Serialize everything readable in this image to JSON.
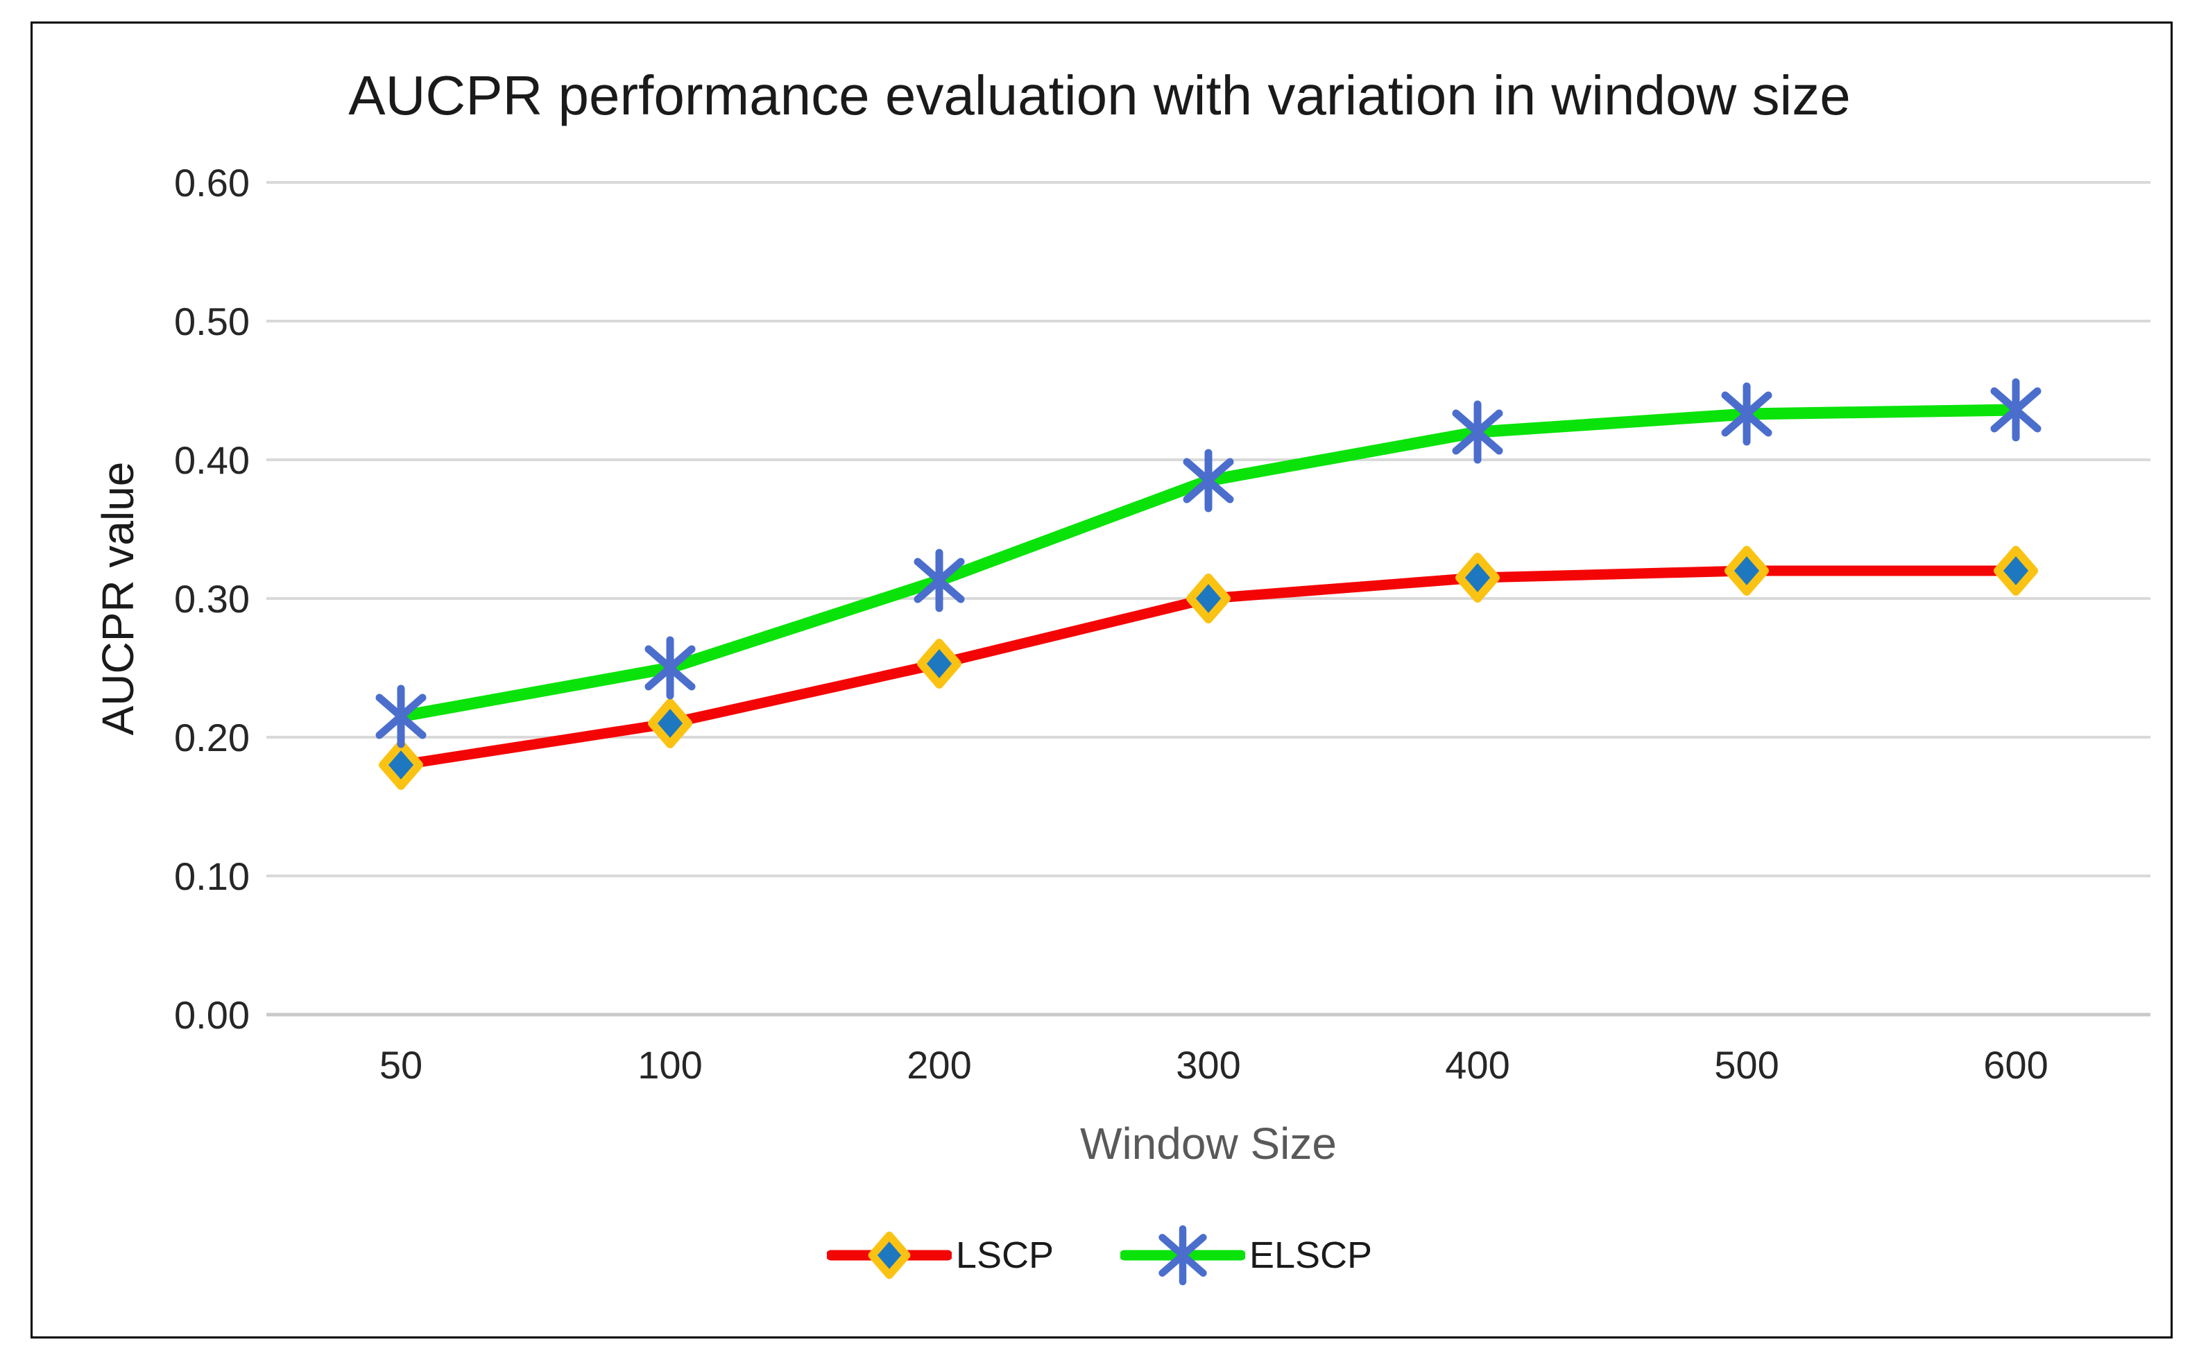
{
  "chart_data": {
    "type": "line",
    "title": "AUCPR performance evaluation with variation in window size",
    "xlabel": "Window Size",
    "ylabel": "AUCPR value",
    "categories": [
      "50",
      "100",
      "200",
      "300",
      "400",
      "500",
      "600"
    ],
    "y_ticks": [
      "0.00",
      "0.10",
      "0.20",
      "0.30",
      "0.40",
      "0.50",
      "0.60"
    ],
    "ylim": [
      0.0,
      0.6
    ],
    "grid": true,
    "legend_position": "bottom-center",
    "series": [
      {
        "name": "LSCP",
        "values": [
          0.18,
          0.21,
          0.253,
          0.3,
          0.315,
          0.32,
          0.32
        ],
        "line_color": "#f40505",
        "marker": "diamond",
        "marker_fill": "#1e78c0",
        "marker_outline": "#fac314"
      },
      {
        "name": "ELSCP",
        "values": [
          0.215,
          0.25,
          0.313,
          0.385,
          0.42,
          0.433,
          0.436
        ],
        "line_color": "#0ae30a",
        "marker": "asterisk",
        "marker_color": "#4b6ecd"
      }
    ],
    "colors": {
      "gridline": "#d9d9d9",
      "axis_line": "#c9c9c9",
      "tick_label": "#262626",
      "title": "#1a1a1a",
      "xlabel": "#595959",
      "ylabel": "#1a1a1a",
      "frame_border": "#000000",
      "background": "#ffffff"
    }
  }
}
